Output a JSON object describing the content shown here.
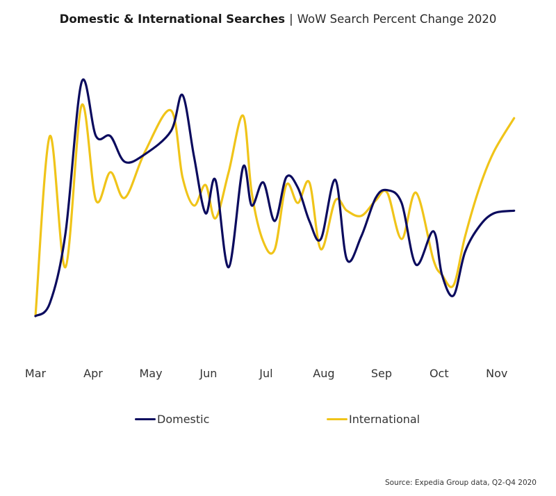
{
  "title": {
    "bold": "Domestic & International Searches",
    "separator": "|",
    "subtitle": "WoW Search Percent Change 2020"
  },
  "source": "Source: Expedia Group data, Q2-Q4 2020",
  "chart_data": {
    "type": "line",
    "title": "Domestic & International Searches | WoW Search Percent Change 2020",
    "xlabel": "",
    "ylabel": "",
    "grid": false,
    "legend_position": "bottom",
    "x_ticks": [
      "Mar",
      "Apr",
      "May",
      "Jun",
      "Jul",
      "Aug",
      "Sep",
      "Oct",
      "Nov"
    ],
    "x_range": [
      0,
      8.4
    ],
    "ylim": [
      0,
      100
    ],
    "series": [
      {
        "name": "Domestic",
        "color": "#0b0b5e",
        "x": [
          0,
          0.25,
          0.52,
          0.8,
          1.05,
          1.3,
          1.55,
          1.9,
          2.35,
          2.55,
          2.75,
          2.95,
          3.12,
          3.35,
          3.6,
          3.75,
          3.95,
          4.15,
          4.35,
          4.55,
          4.75,
          4.95,
          5.2,
          5.4,
          5.65,
          5.9,
          6.1,
          6.35,
          6.6,
          6.9,
          7.05,
          7.25,
          7.45,
          7.7,
          7.95,
          8.3
        ],
        "y": [
          0,
          5,
          32,
          91,
          70,
          70,
          60,
          63,
          72,
          86,
          62,
          40,
          53,
          19,
          58,
          43,
          52,
          37,
          54,
          50,
          37,
          30,
          53,
          22,
          31,
          46,
          49,
          44,
          20,
          33,
          16,
          8,
          25,
          35,
          40,
          41
        ]
      },
      {
        "name": "International",
        "color": "#f0c419",
        "x": [
          0,
          0.25,
          0.52,
          0.8,
          1.05,
          1.3,
          1.55,
          1.9,
          2.35,
          2.55,
          2.75,
          2.95,
          3.12,
          3.35,
          3.6,
          3.75,
          3.95,
          4.15,
          4.35,
          4.55,
          4.75,
          4.95,
          5.2,
          5.4,
          5.65,
          5.9,
          6.1,
          6.35,
          6.6,
          6.9,
          7.05,
          7.25,
          7.45,
          7.7,
          7.95,
          8.3
        ],
        "y": [
          0,
          70,
          19,
          82,
          45,
          56,
          46,
          64,
          80,
          54,
          43,
          51,
          38,
          56,
          78,
          48,
          29,
          26,
          51,
          44,
          52,
          26,
          45,
          41,
          39,
          45,
          48,
          30,
          48,
          22,
          16,
          12,
          31,
          50,
          64,
          77
        ]
      }
    ]
  }
}
